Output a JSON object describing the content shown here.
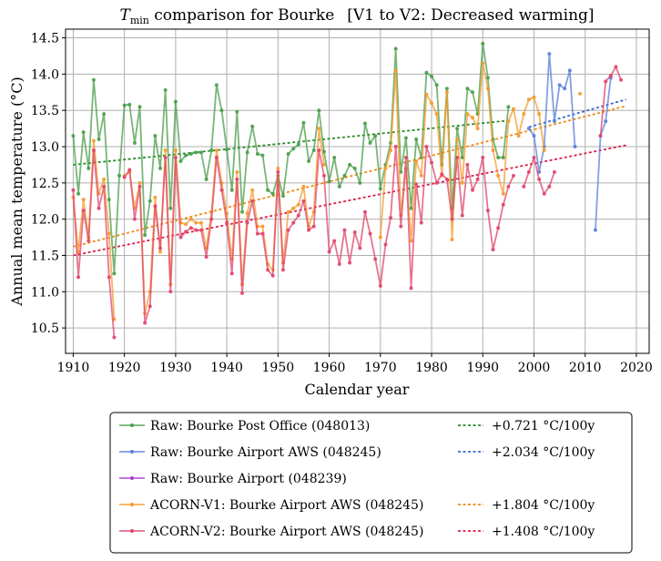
{
  "chart_data": {
    "type": "line",
    "title": {
      "main": "T",
      "subscript": "min",
      "rest": " comparison for Bourke",
      "bracket": "[V1 to V2: Decreased warming]"
    },
    "xlabel": "Calendar year",
    "ylabel": "Annual mean temperature (°C)",
    "xlim": [
      1908.5,
      2022.5
    ],
    "ylim": [
      10.15,
      14.62
    ],
    "xticks": [
      1910,
      1920,
      1930,
      1940,
      1950,
      1960,
      1970,
      1980,
      1990,
      2000,
      2010,
      2020
    ],
    "yticks": [
      10.5,
      11.0,
      11.5,
      12.0,
      12.5,
      13.0,
      13.5,
      14.0,
      14.5
    ],
    "ytick_labels": [
      "10.5",
      "11.0",
      "11.5",
      "12.0",
      "12.5",
      "13.0",
      "13.5",
      "14.0",
      "14.5"
    ],
    "grid": true,
    "legend_position": "below",
    "series": [
      {
        "name": "Raw: Bourke Post Office (048013)",
        "color": "#4a9e4a",
        "x": [
          1910,
          1911,
          1912,
          1913,
          1914,
          1915,
          1916,
          1917,
          1918,
          1919,
          1920,
          1921,
          1922,
          1923,
          1924,
          1925,
          1926,
          1927,
          1928,
          1929,
          1930,
          1931,
          1932,
          1933,
          1934,
          1935,
          1936,
          1937,
          1938,
          1939,
          1940,
          1941,
          1942,
          1943,
          1944,
          1945,
          1946,
          1947,
          1948,
          1949,
          1950,
          1951,
          1952,
          1953,
          1954,
          1955,
          1956,
          1957,
          1958,
          1959,
          1960,
          1961,
          1962,
          1963,
          1964,
          1965,
          1966,
          1967,
          1968,
          1969,
          1970,
          1971,
          1972,
          1973,
          1974,
          1975,
          1976,
          1977,
          1978,
          1979,
          1980,
          1981,
          1982,
          1983,
          1984,
          1985,
          1986,
          1987,
          1988,
          1989,
          1990,
          1991,
          1992,
          1993,
          1994,
          1995
        ],
        "y": [
          13.15,
          12.35,
          13.2,
          12.7,
          13.92,
          13.1,
          13.45,
          12.27,
          11.25,
          12.6,
          13.57,
          13.58,
          13.05,
          13.55,
          11.78,
          12.25,
          13.15,
          12.7,
          13.78,
          12.15,
          13.62,
          12.8,
          12.88,
          12.9,
          12.92,
          12.92,
          12.55,
          12.95,
          13.85,
          13.5,
          12.96,
          12.4,
          13.48,
          12.1,
          12.92,
          13.28,
          12.9,
          12.88,
          12.4,
          12.35,
          12.6,
          12.32,
          12.9,
          12.97,
          13.03,
          13.33,
          12.8,
          12.95,
          13.5,
          12.93,
          12.52,
          12.85,
          12.45,
          12.6,
          12.75,
          12.7,
          12.5,
          13.32,
          13.05,
          13.15,
          12.42,
          12.75,
          13.05,
          14.35,
          12.65,
          13.12,
          12.15,
          13.1,
          12.85,
          14.02,
          13.97,
          13.85,
          12.75,
          13.8,
          12.15,
          13.25,
          12.85,
          13.8,
          13.75,
          13.45,
          14.42,
          13.95,
          13.1,
          12.85,
          12.85,
          13.55
        ]
      },
      {
        "name": "Raw: Bourke Airport AWS (048245)",
        "color": "#5a7fd9",
        "x": [
          1999,
          2000,
          2001,
          2002,
          2003,
          2004,
          2005,
          2006,
          2007,
          2008,
          2012,
          2013,
          2014,
          2015
        ],
        "y": [
          13.25,
          13.15,
          12.65,
          13.0,
          14.28,
          13.35,
          13.85,
          13.8,
          14.05,
          13.0,
          11.85,
          13.15,
          13.35,
          13.95
        ]
      },
      {
        "name": "Raw: Bourke Airport (048239)",
        "color": "#a53fd4",
        "x": [],
        "y": []
      },
      {
        "name": "ACORN-V1: Bourke Airport AWS (048245)",
        "color": "#f59a2e",
        "x": [
          1910,
          1911,
          1912,
          1913,
          1914,
          1915,
          1916,
          1917,
          1918,
          1919,
          1920,
          1921,
          1922,
          1923,
          1924,
          1925,
          1926,
          1927,
          1928,
          1929,
          1930,
          1931,
          1932,
          1933,
          1934,
          1935,
          1936,
          1937,
          1938,
          1939,
          1940,
          1941,
          1942,
          1943,
          1944,
          1945,
          1946,
          1947,
          1948,
          1949,
          1950,
          1951,
          1952,
          1953,
          1954,
          1955,
          1956,
          1957,
          1958,
          1959,
          1970,
          1971,
          1972,
          1973,
          1974,
          1975,
          1976,
          1977,
          1978,
          1979,
          1980,
          1981,
          1982,
          1983,
          1984,
          1985,
          1986,
          1987,
          1988,
          1989,
          1990,
          1991,
          1992,
          1993,
          1994,
          1995,
          1996,
          1997,
          1998,
          1999,
          2000,
          2001,
          2002,
          2003,
          2004,
          2005,
          2006,
          2007,
          2008,
          2009,
          2010,
          2011,
          2012,
          2013,
          2014,
          2015,
          2016,
          2017,
          2018
        ],
        "y": [
          12.3,
          11.55,
          12.27,
          11.75,
          13.08,
          12.35,
          12.55,
          11.8,
          10.62,
          null,
          12.6,
          12.65,
          12.15,
          12.5,
          10.7,
          11.0,
          12.3,
          11.55,
          12.95,
          11.1,
          12.95,
          11.95,
          11.93,
          12.0,
          11.95,
          11.95,
          11.6,
          12.1,
          12.95,
          12.5,
          12.08,
          11.45,
          12.65,
          11.1,
          12.08,
          12.4,
          11.9,
          11.9,
          11.38,
          11.3,
          12.7,
          11.4,
          12.1,
          12.15,
          12.2,
          12.45,
          11.9,
          12.1,
          13.25,
          12.75,
          11.75,
          12.7,
          12.95,
          14.05,
          12.05,
          12.7,
          11.7,
          12.8,
          12.6,
          13.72,
          13.6,
          13.45,
          12.6,
          13.75,
          11.72,
          13.1,
          12.5,
          13.45,
          13.4,
          13.25,
          14.15,
          13.8,
          12.95,
          12.6,
          12.35,
          13.35,
          13.52,
          13.15,
          13.45,
          13.65,
          13.68,
          13.45,
          12.95,
          null,
          null,
          null,
          null,
          null,
          null,
          13.73,
          null,
          null,
          null,
          null,
          null,
          null,
          null,
          null,
          null
        ]
      },
      {
        "name": "ACORN-V2: Bourke Airport AWS (048245)",
        "color": "#e0466b",
        "x": [
          1910,
          1911,
          1912,
          1913,
          1914,
          1915,
          1916,
          1917,
          1918,
          1919,
          1920,
          1921,
          1922,
          1923,
          1924,
          1925,
          1926,
          1927,
          1928,
          1929,
          1930,
          1931,
          1932,
          1933,
          1934,
          1935,
          1936,
          1937,
          1938,
          1939,
          1940,
          1941,
          1942,
          1943,
          1944,
          1945,
          1946,
          1947,
          1948,
          1949,
          1950,
          1951,
          1952,
          1953,
          1954,
          1955,
          1956,
          1957,
          1958,
          1959,
          1960,
          1961,
          1962,
          1963,
          1964,
          1965,
          1966,
          1967,
          1968,
          1969,
          1970,
          1971,
          1972,
          1973,
          1974,
          1975,
          1976,
          1977,
          1978,
          1979,
          1980,
          1981,
          1982,
          1983,
          1984,
          1985,
          1986,
          1987,
          1988,
          1989,
          1990,
          1991,
          1992,
          1993,
          1994,
          1995,
          1996,
          1997,
          1998,
          1999,
          2000,
          2001,
          2002,
          2003,
          2004,
          2005,
          2006,
          2007,
          2008,
          2009,
          2010,
          2011,
          2012,
          2013,
          2014,
          2015,
          2016,
          2017,
          2018
        ],
        "y": [
          12.4,
          11.2,
          12.12,
          11.7,
          12.95,
          12.15,
          12.45,
          11.2,
          10.37,
          null,
          12.58,
          12.68,
          12.0,
          12.45,
          10.57,
          10.8,
          12.18,
          11.6,
          12.85,
          11.0,
          12.85,
          11.75,
          11.83,
          11.88,
          11.85,
          11.85,
          11.48,
          12.0,
          12.85,
          12.4,
          11.95,
          11.25,
          12.55,
          10.98,
          11.95,
          12.25,
          11.8,
          11.8,
          11.3,
          11.22,
          12.65,
          11.3,
          11.85,
          11.95,
          12.05,
          12.25,
          11.85,
          11.9,
          12.95,
          12.6,
          11.55,
          11.7,
          11.38,
          11.85,
          11.4,
          11.82,
          11.6,
          12.1,
          11.8,
          11.45,
          11.08,
          11.65,
          12.02,
          13.0,
          11.9,
          12.85,
          11.05,
          12.48,
          11.95,
          13.0,
          12.78,
          12.5,
          12.62,
          12.55,
          12.0,
          12.85,
          12.05,
          12.75,
          12.4,
          12.55,
          12.85,
          12.12,
          11.58,
          11.88,
          12.2,
          12.45,
          12.6,
          null,
          12.45,
          12.65,
          12.85,
          12.55,
          12.35,
          12.45,
          12.65,
          null,
          null,
          null,
          null,
          null,
          null,
          null,
          null,
          13.15,
          13.9,
          13.98,
          14.1,
          13.92,
          null
        ]
      }
    ],
    "trends": [
      {
        "label": "+0.721 °C/100y",
        "color": "#2a8a2a",
        "x": [
          1910,
          1995
        ],
        "y": [
          12.75,
          13.36
        ]
      },
      {
        "label": "+2.034 °C/100y",
        "color": "#3a6ad0",
        "x": [
          1999,
          2018
        ],
        "y": [
          13.27,
          13.65
        ]
      },
      {
        "label": "+1.804 °C/100y",
        "color": "#f08a14",
        "x": [
          1910,
          2018
        ],
        "y": [
          11.62,
          13.56
        ]
      },
      {
        "label": "+1.408 °C/100y",
        "color": "#dc1f4a",
        "x": [
          1910,
          2018
        ],
        "y": [
          11.5,
          13.02
        ]
      }
    ]
  }
}
